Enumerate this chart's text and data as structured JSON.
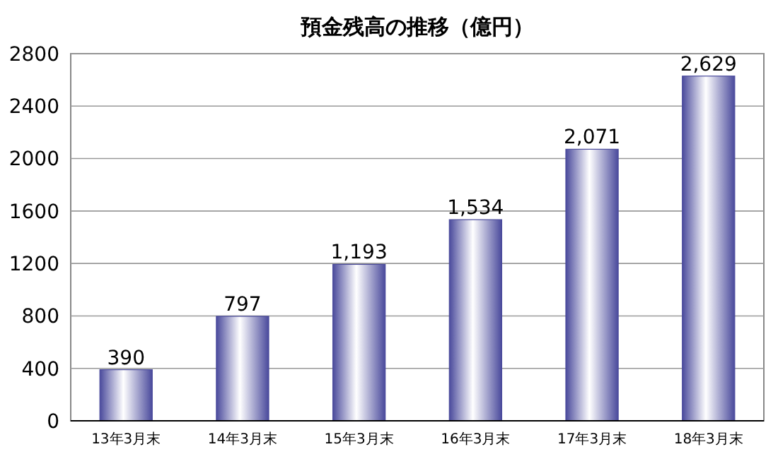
{
  "chart_data": {
    "type": "bar",
    "title": "預金残高の推移（億円）",
    "categories": [
      "13年3月末",
      "14年3月末",
      "15年3月末",
      "16年3月末",
      "17年3月末",
      "18年3月末"
    ],
    "values": [
      390,
      797,
      1193,
      1534,
      2071,
      2629
    ],
    "value_labels": [
      "390",
      "797",
      "1,193",
      "1,534",
      "2,071",
      "2,629"
    ],
    "color": "#4a4a9c",
    "ylim": [
      0,
      2800
    ],
    "yticks": [
      0,
      400,
      800,
      1200,
      1600,
      2000,
      2400,
      2800
    ],
    "grid": "y"
  }
}
